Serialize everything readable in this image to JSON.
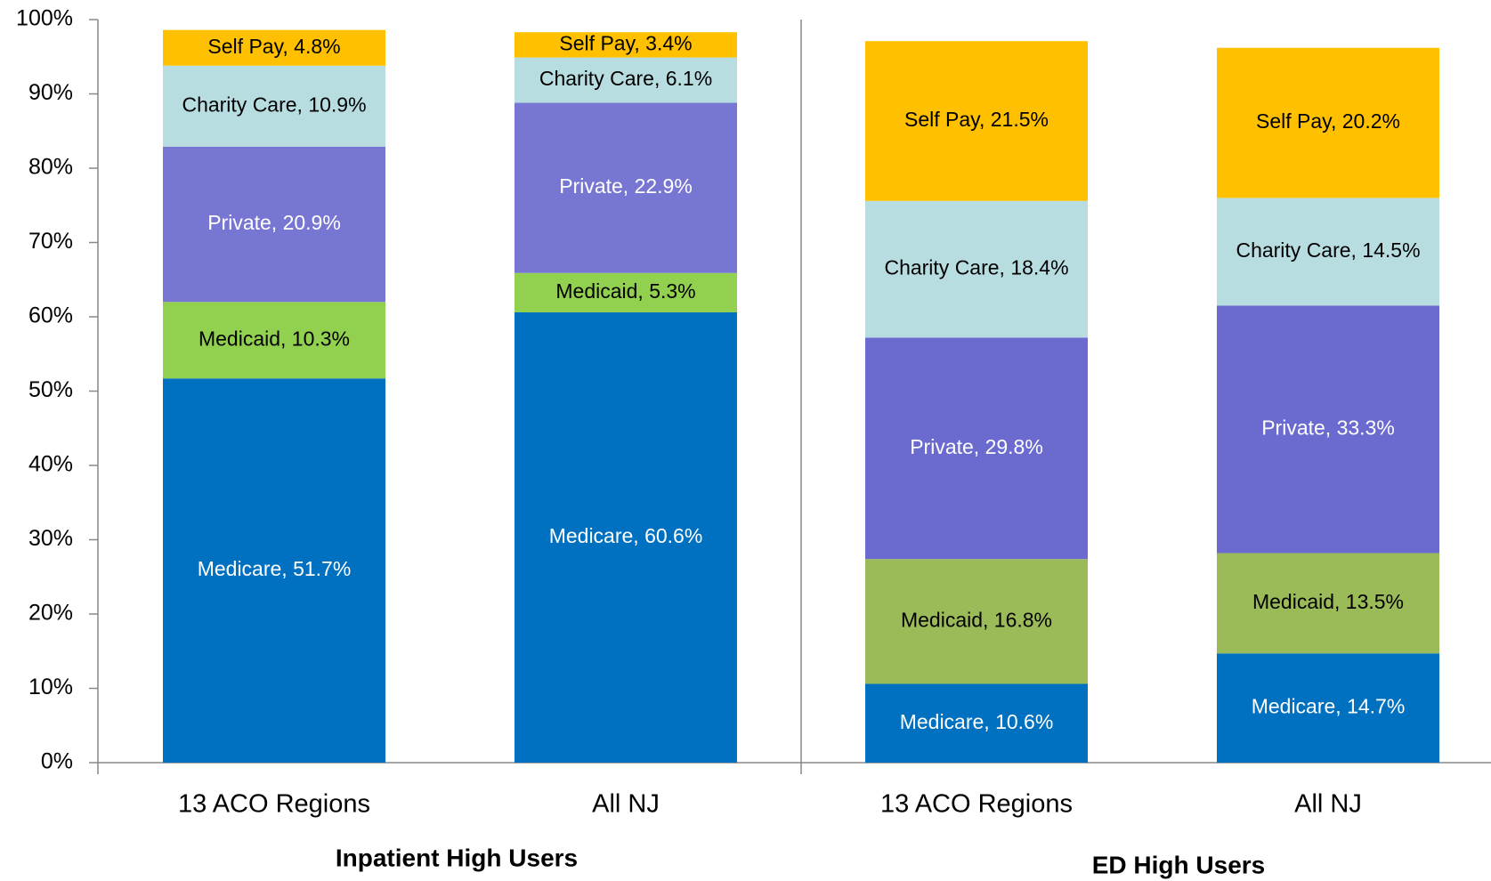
{
  "chart_data": {
    "type": "stacked_bar",
    "categories": [
      "13 ACO Regions",
      "All NJ",
      "13 ACO Regions",
      "All NJ"
    ],
    "groups": [
      "Inpatient High Users",
      "ED High Users"
    ],
    "series": [
      {
        "name": "Medicare",
        "colors": [
          "#0070c0",
          "#0070c0",
          "#0070c0",
          "#0070c0"
        ],
        "label_color": "#ffffff",
        "values": [
          51.7,
          60.6,
          10.6,
          14.7
        ],
        "value_labels": [
          "Medicare, 51.7%",
          "Medicare, 60.6%",
          "Medicare, 10.6%",
          "Medicare, 14.7%"
        ]
      },
      {
        "name": "Medicaid",
        "colors": [
          "#92d050",
          "#92d050",
          "#9bbb59",
          "#9bbb59"
        ],
        "label_color": "#000000",
        "values": [
          10.3,
          5.3,
          16.8,
          13.5
        ],
        "value_labels": [
          "Medicaid, 10.3%",
          "Medicaid, 5.3%",
          "Medicaid, 16.8%",
          "Medicaid, 13.5%"
        ]
      },
      {
        "name": "Private",
        "colors": [
          "#7777d3",
          "#7777d3",
          "#6b6bcf",
          "#6b6bcf"
        ],
        "label_color": "#ffffff",
        "values": [
          20.9,
          22.9,
          29.8,
          33.3
        ],
        "value_labels": [
          "Private, 20.9%",
          "Private, 22.9%",
          "Private, 29.8%",
          "Private, 33.3%"
        ]
      },
      {
        "name": "Charity Care",
        "colors": [
          "#b7dde1",
          "#b7dde1",
          "#b7dde1",
          "#b7dde1"
        ],
        "label_color": "#000000",
        "values": [
          10.9,
          6.1,
          18.4,
          14.5
        ],
        "value_labels": [
          "Charity Care, 10.9%",
          "Charity Care, 6.1%",
          "Charity Care, 18.4%",
          "Charity Care, 14.5%"
        ]
      },
      {
        "name": "Self Pay",
        "colors": [
          "#ffc000",
          "#ffc000",
          "#ffc000",
          "#ffc000"
        ],
        "label_color": "#000000",
        "values": [
          4.8,
          3.4,
          21.5,
          20.2
        ],
        "value_labels": [
          "Self Pay, 4.8%",
          "Self Pay, 3.4%",
          "Self Pay, 21.5%",
          "Self Pay, 20.2%"
        ]
      }
    ],
    "ylim": [
      0,
      100
    ],
    "yticks": [
      {
        "value": 0,
        "label": "0%"
      },
      {
        "value": 10,
        "label": "10%"
      },
      {
        "value": 20,
        "label": "20%"
      },
      {
        "value": 30,
        "label": "30%"
      },
      {
        "value": 40,
        "label": "40%"
      },
      {
        "value": 50,
        "label": "50%"
      },
      {
        "value": 60,
        "label": "60%"
      },
      {
        "value": 70,
        "label": "70%"
      },
      {
        "value": 80,
        "label": "80%"
      },
      {
        "value": 90,
        "label": "90%"
      },
      {
        "value": 100,
        "label": "100%"
      }
    ],
    "grid": false
  }
}
